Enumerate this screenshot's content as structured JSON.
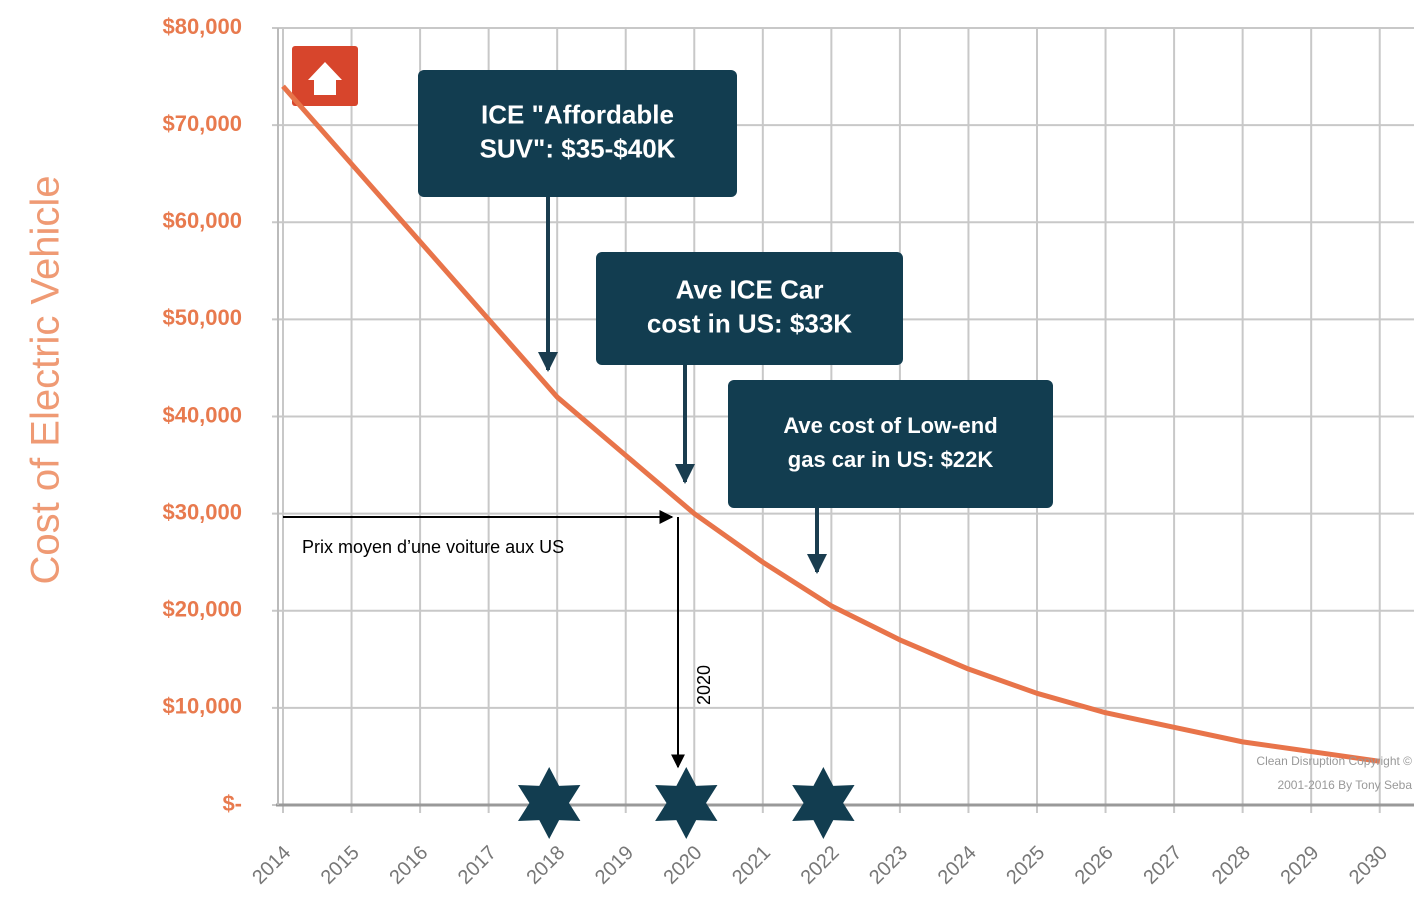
{
  "chart_data": {
    "type": "line",
    "y_label": "Cost of Electric Vehicle",
    "x": [
      2014,
      2015,
      2016,
      2017,
      2018,
      2019,
      2020,
      2021,
      2022,
      2023,
      2024,
      2025,
      2026,
      2027,
      2028,
      2029,
      2030
    ],
    "values": [
      74000,
      66000,
      58000,
      50000,
      42000,
      36000,
      30000,
      25000,
      20500,
      17000,
      14000,
      11500,
      9500,
      8000,
      6500,
      5500,
      4500
    ],
    "color": "#e8744a",
    "xlim": [
      2014,
      2030.5
    ],
    "xticks": [
      2014,
      2015,
      2016,
      2017,
      2018,
      2019,
      2020,
      2021,
      2022,
      2023,
      2024,
      2025,
      2026,
      2027,
      2028,
      2029,
      2030
    ],
    "ylim": [
      0,
      80000
    ],
    "yticks": [
      {
        "value": 0,
        "label": "$-"
      },
      {
        "value": 10000,
        "label": "$10,000"
      },
      {
        "value": 20000,
        "label": "$20,000"
      },
      {
        "value": 30000,
        "label": "$30,000"
      },
      {
        "value": 40000,
        "label": "$40,000"
      },
      {
        "value": 50000,
        "label": "$50,000"
      },
      {
        "value": 60000,
        "label": "$60,000"
      },
      {
        "value": 70000,
        "label": "$70,000"
      },
      {
        "value": 80000,
        "label": "$80,000"
      }
    ],
    "grid": true,
    "annotations": [
      {
        "lines": [
          "ICE \"Affordable",
          "SUV\": $35-$40K"
        ]
      },
      {
        "lines": [
          "Ave ICE Car",
          "cost in US: $33K"
        ]
      },
      {
        "lines": [
          "Ave cost of Low-end",
          "gas car in US: $22K"
        ]
      }
    ],
    "note_price": "Prix moyen d’une voiture aux US",
    "note_year": "2020",
    "copyright": [
      "Clean Disruption Copyright ©",
      "2001-2016 By Tony Seba"
    ]
  }
}
